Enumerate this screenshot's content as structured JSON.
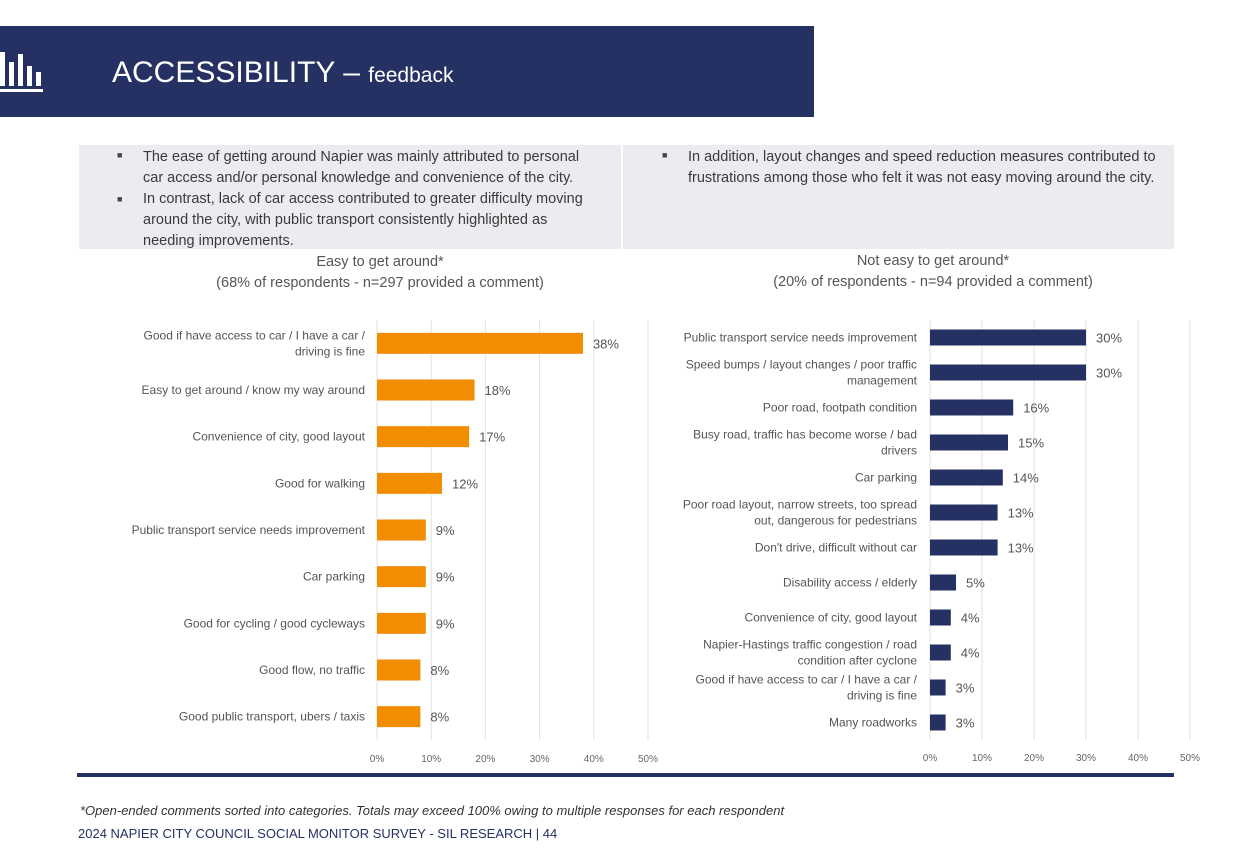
{
  "header": {
    "title_main": "ACCESSIBILITY",
    "title_sep": " – ",
    "title_sub": "feedback",
    "icon": "bar-chart-icon",
    "bg_color": "#253162"
  },
  "summary": {
    "left": [
      "The ease of getting around Napier was mainly attributed to personal car access and/or personal knowledge and convenience of the city.",
      "In contrast, lack of car access contributed to greater difficulty moving around the city, with public transport consistently highlighted as needing improvements."
    ],
    "right": [
      "In addition, layout changes and speed reduction measures contributed to frustrations among those who felt it was not easy moving around the city."
    ]
  },
  "chart_data": [
    {
      "type": "bar",
      "orientation": "horizontal",
      "title": "Easy to get around*",
      "subtitle": "(68% of respondents - n=297 provided a comment)",
      "color": "#F28C00",
      "categories": [
        "Good if have access to car / I have a car / driving is fine",
        "Easy to get around / know my way around",
        "Convenience of city, good layout",
        "Good for walking",
        "Public transport service needs improvement",
        "Car parking",
        "Good for cycling / good cycleways",
        "Good flow, no traffic",
        "Good public transport, ubers / taxis"
      ],
      "values": [
        38,
        18,
        17,
        12,
        9,
        9,
        9,
        8,
        8
      ],
      "value_labels": [
        "38%",
        "18%",
        "17%",
        "12%",
        "9%",
        "9%",
        "9%",
        "8%",
        "8%"
      ],
      "xlim": [
        0,
        50
      ],
      "ticks": [
        "0%",
        "10%",
        "20%",
        "30%",
        "40%",
        "50%"
      ],
      "grid": true
    },
    {
      "type": "bar",
      "orientation": "horizontal",
      "title": "Not easy to get around*",
      "subtitle": "(20% of respondents - n=94 provided a comment)",
      "color": "#253162",
      "categories": [
        "Public transport service needs improvement",
        "Speed bumps / layout changes / poor traffic management",
        "Poor road, footpath condition",
        "Busy road, traffic has become worse / bad drivers",
        "Car parking",
        "Poor road layout, narrow streets, too spread out, dangerous for pedestrians",
        "Don't drive, difficult without car",
        "Disability access / elderly",
        "Convenience of city, good layout",
        "Napier-Hastings traffic congestion / road condition after cyclone",
        "Good if have access to car / I have a car / driving is fine",
        "Many roadworks"
      ],
      "values": [
        30,
        30,
        16,
        15,
        14,
        13,
        13,
        5,
        4,
        4,
        3,
        3
      ],
      "value_labels": [
        "30%",
        "30%",
        "16%",
        "15%",
        "14%",
        "13%",
        "13%",
        "5%",
        "4%",
        "4%",
        "3%",
        "3%"
      ],
      "xlim": [
        0,
        50
      ],
      "ticks": [
        "0%",
        "10%",
        "20%",
        "30%",
        "40%",
        "50%"
      ],
      "grid": true
    }
  ],
  "footnote": "*Open-ended comments sorted into categories. Totals may exceed 100% owing to multiple responses for each respondent",
  "footer": "2024 NAPIER CITY COUNCIL SOCIAL MONITOR SURVEY - SIL RESEARCH | 44"
}
